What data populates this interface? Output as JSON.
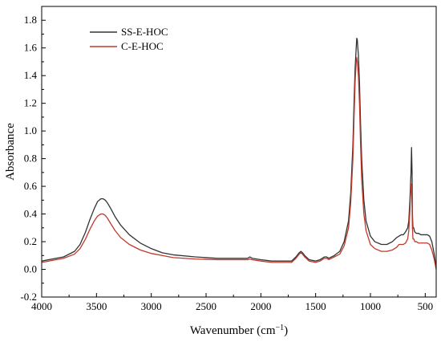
{
  "chart_data": {
    "type": "line",
    "xlabel": "Wavenumber (cm",
    "xlabel_sup": "−1",
    "xlabel_close": ")",
    "ylabel": "Absorbance",
    "xlim": [
      4000,
      400
    ],
    "x_reversed": true,
    "ylim": [
      -0.2,
      1.9
    ],
    "xticks": [
      "4000",
      "3500",
      "3000",
      "2500",
      "2000",
      "1500",
      "1000",
      "500"
    ],
    "xtick_values": [
      4000,
      3500,
      3000,
      2500,
      2000,
      1500,
      1000,
      500
    ],
    "yticks": [
      "-0.2",
      "0.0",
      "0.2",
      "0.4",
      "0.6",
      "0.8",
      "1.0",
      "1.2",
      "1.4",
      "1.6",
      "1.8"
    ],
    "ytick_values": [
      -0.2,
      0.0,
      0.2,
      0.4,
      0.6,
      0.8,
      1.0,
      1.2,
      1.4,
      1.6,
      1.8
    ],
    "grid": false,
    "legend_position": "top-left",
    "series": [
      {
        "name": "SS-E-HOC",
        "color": "#333333",
        "x": [
          4000,
          3800,
          3700,
          3650,
          3600,
          3560,
          3520,
          3490,
          3460,
          3440,
          3420,
          3400,
          3370,
          3330,
          3280,
          3200,
          3100,
          3000,
          2900,
          2800,
          2600,
          2400,
          2200,
          2120,
          2100,
          2080,
          2000,
          1900,
          1800,
          1720,
          1680,
          1650,
          1635,
          1620,
          1600,
          1560,
          1500,
          1460,
          1420,
          1400,
          1380,
          1330,
          1280,
          1240,
          1200,
          1180,
          1160,
          1150,
          1140,
          1130,
          1125,
          1120,
          1115,
          1110,
          1100,
          1090,
          1080,
          1060,
          1040,
          1000,
          960,
          900,
          850,
          800,
          760,
          740,
          720,
          700,
          680,
          660,
          650,
          640,
          630,
          625,
          620,
          617,
          612,
          605,
          600,
          595,
          580,
          560,
          540,
          520,
          500,
          480,
          460,
          440,
          420,
          400
        ],
        "y": [
          0.06,
          0.09,
          0.13,
          0.18,
          0.27,
          0.36,
          0.44,
          0.49,
          0.51,
          0.51,
          0.5,
          0.48,
          0.44,
          0.38,
          0.32,
          0.25,
          0.19,
          0.15,
          0.12,
          0.105,
          0.09,
          0.08,
          0.08,
          0.08,
          0.09,
          0.08,
          0.07,
          0.06,
          0.06,
          0.06,
          0.09,
          0.12,
          0.13,
          0.12,
          0.1,
          0.07,
          0.06,
          0.07,
          0.09,
          0.09,
          0.08,
          0.1,
          0.13,
          0.2,
          0.35,
          0.55,
          0.9,
          1.2,
          1.45,
          1.6,
          1.67,
          1.66,
          1.6,
          1.55,
          1.35,
          1.05,
          0.8,
          0.5,
          0.35,
          0.24,
          0.2,
          0.18,
          0.18,
          0.2,
          0.23,
          0.24,
          0.25,
          0.25,
          0.27,
          0.3,
          0.35,
          0.5,
          0.7,
          0.88,
          0.7,
          0.4,
          0.3,
          0.3,
          0.28,
          0.27,
          0.26,
          0.26,
          0.25,
          0.25,
          0.25,
          0.25,
          0.24,
          0.2,
          0.12,
          0.01
        ]
      },
      {
        "name": "C-E-HOC",
        "color": "#c0392b",
        "x": [
          4000,
          3800,
          3700,
          3650,
          3600,
          3560,
          3520,
          3490,
          3460,
          3440,
          3420,
          3400,
          3370,
          3330,
          3280,
          3200,
          3100,
          3000,
          2900,
          2800,
          2600,
          2400,
          2200,
          2120,
          2100,
          2080,
          2000,
          1900,
          1800,
          1720,
          1680,
          1650,
          1635,
          1620,
          1600,
          1560,
          1500,
          1460,
          1420,
          1400,
          1380,
          1330,
          1280,
          1240,
          1200,
          1180,
          1160,
          1150,
          1140,
          1130,
          1125,
          1120,
          1115,
          1110,
          1100,
          1090,
          1080,
          1060,
          1040,
          1000,
          960,
          900,
          850,
          800,
          760,
          740,
          720,
          700,
          680,
          660,
          650,
          640,
          630,
          625,
          620,
          617,
          612,
          605,
          600,
          595,
          580,
          560,
          540,
          520,
          500,
          480,
          460,
          440,
          420,
          400
        ],
        "y": [
          0.05,
          0.08,
          0.11,
          0.15,
          0.22,
          0.29,
          0.35,
          0.385,
          0.4,
          0.4,
          0.39,
          0.37,
          0.33,
          0.28,
          0.23,
          0.18,
          0.14,
          0.115,
          0.1,
          0.085,
          0.075,
          0.07,
          0.07,
          0.07,
          0.075,
          0.07,
          0.06,
          0.05,
          0.05,
          0.05,
          0.08,
          0.11,
          0.12,
          0.11,
          0.09,
          0.06,
          0.05,
          0.06,
          0.08,
          0.08,
          0.07,
          0.09,
          0.11,
          0.17,
          0.3,
          0.48,
          0.8,
          1.08,
          1.35,
          1.5,
          1.53,
          1.5,
          1.45,
          1.4,
          1.2,
          0.9,
          0.65,
          0.4,
          0.28,
          0.18,
          0.15,
          0.13,
          0.13,
          0.14,
          0.16,
          0.18,
          0.18,
          0.18,
          0.19,
          0.22,
          0.28,
          0.42,
          0.62,
          0.6,
          0.45,
          0.3,
          0.22,
          0.22,
          0.21,
          0.2,
          0.2,
          0.19,
          0.19,
          0.19,
          0.19,
          0.19,
          0.18,
          0.14,
          0.08,
          0.0
        ]
      }
    ]
  }
}
